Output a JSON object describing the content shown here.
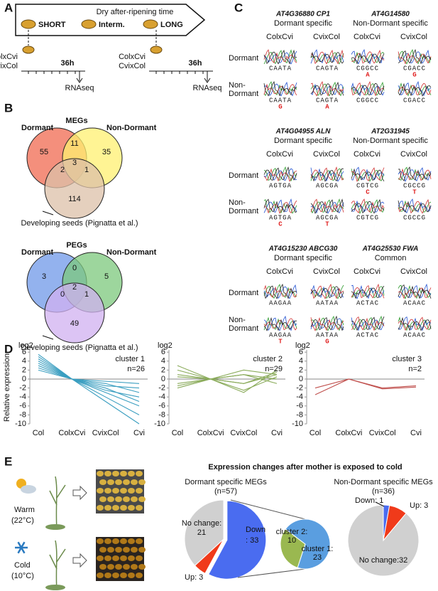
{
  "panel_a": {
    "letter": "A",
    "arrow_label": "Dry after-ripening time",
    "stages": [
      "SHORT",
      "Interm.",
      "LONG"
    ],
    "crosses": [
      "ColxCvi",
      "CvixCol"
    ],
    "time": "36h",
    "assay": "RNAseq"
  },
  "panel_b": {
    "letter": "B",
    "row_left": "Dormant",
    "row_right": "Non-Dormant",
    "third": "Developing seeds (Pignatta et al.)",
    "megs": {
      "title": "MEGs",
      "dormant_only": 55,
      "dormant_nondormant": 11,
      "nondormant_only": 35,
      "dormant_seeds": 2,
      "all_three": 3,
      "nondormant_seeds": 1,
      "seeds_only": 114
    },
    "pegs": {
      "title": "PEGs",
      "dormant_only": 3,
      "dormant_nondormant": 0,
      "nondormant_only": 5,
      "dormant_seeds": 0,
      "all_three": 2,
      "nondormant_seeds": 1,
      "seeds_only": 49
    }
  },
  "panel_c": {
    "letter": "C",
    "columns": [
      "ColxCvi",
      "CvixCol"
    ],
    "row_labels": {
      "dormant": "Dormant",
      "non_dormant": [
        "Non-",
        "Dormant"
      ]
    },
    "genes": [
      {
        "name": "AT4G36880 CP1",
        "spec": "Dormant specific",
        "dormant": [
          {
            "seq": "CAATA"
          },
          {
            "seq": "CAGTA"
          }
        ],
        "non_dormant": [
          {
            "seq": "CAATA",
            "alt": "G"
          },
          {
            "seq": "CAGTA",
            "alt": "A"
          }
        ]
      },
      {
        "name": "AT4G14580",
        "spec": "Non-Dormant specific",
        "dormant": [
          {
            "seq": "CGGCC",
            "alt": "A"
          },
          {
            "seq": "CGACC",
            "alt": "G"
          }
        ],
        "non_dormant": [
          {
            "seq": "CGGCC"
          },
          {
            "seq": "CGACC"
          }
        ]
      },
      {
        "name": "AT4G04955 ALN",
        "spec": "Dormant specific",
        "dormant": [
          {
            "seq": "AGTGA"
          },
          {
            "seq": "AGCGA"
          }
        ],
        "non_dormant": [
          {
            "seq": "AGTGA",
            "alt": "C"
          },
          {
            "seq": "AGCGA",
            "alt": "T"
          }
        ]
      },
      {
        "name": "AT2G31945",
        "spec": "Non-Dormant specific",
        "dormant": [
          {
            "seq": "CGTCG",
            "alt": "C"
          },
          {
            "seq": "CGCCG",
            "alt": "T"
          }
        ],
        "non_dormant": [
          {
            "seq": "CGTCG"
          },
          {
            "seq": "CGCCG"
          }
        ]
      },
      {
        "name": "AT4G15230 ABCG30",
        "spec": "Dormant specific",
        "dormant": [
          {
            "seq": "AAGAA"
          },
          {
            "seq": "AATAA"
          }
        ],
        "non_dormant": [
          {
            "seq": "AAGAA",
            "alt": "T"
          },
          {
            "seq": "AATAA",
            "alt": "G"
          }
        ]
      },
      {
        "name": "AT4G25530 FWA",
        "spec": "Common",
        "dormant": [
          {
            "seq": "ACTAC"
          },
          {
            "seq": "ACAAC"
          }
        ],
        "non_dormant": [
          {
            "seq": "ACTAC"
          },
          {
            "seq": "ACAAC"
          }
        ]
      }
    ]
  },
  "panel_d": {
    "letter": "D",
    "unit": "log2",
    "ylabel": "Relative expression",
    "categories": [
      "Col",
      "ColxCvi",
      "CvixCol",
      "Cvi"
    ],
    "ylim": [
      -10,
      6.5
    ],
    "yticks": [
      6,
      4,
      2,
      0,
      -2,
      -4,
      -6,
      -8,
      -10
    ],
    "clusters": [
      {
        "name": "cluster 1",
        "n": "n=26",
        "color": "#3a9ec0",
        "lines": [
          [
            4.5,
            0,
            -2,
            -5
          ],
          [
            3,
            0,
            -1,
            -3
          ],
          [
            5,
            0,
            -3,
            -6
          ],
          [
            2,
            0,
            -0.5,
            -1
          ],
          [
            4,
            0,
            -4,
            -8
          ],
          [
            3.5,
            0,
            -2.5,
            -4
          ],
          [
            2.5,
            0,
            -1.5,
            -2
          ],
          [
            5.5,
            0,
            -5,
            -10
          ]
        ]
      },
      {
        "name": "cluster 2",
        "n": "n=29",
        "color": "#8aab5a",
        "lines": [
          [
            1,
            0,
            -1,
            1
          ],
          [
            -2,
            0,
            2,
            1
          ],
          [
            3,
            0,
            -3,
            2
          ],
          [
            0.5,
            0,
            1,
            0
          ],
          [
            -1,
            0,
            -1,
            1.5
          ],
          [
            2,
            0,
            1,
            -1
          ],
          [
            -1.5,
            0,
            -2.5,
            0.5
          ]
        ]
      },
      {
        "name": "cluster 3",
        "n": "n=2",
        "color": "#c0504d",
        "lines": [
          [
            -3.5,
            0,
            -2,
            -1.5
          ],
          [
            -2,
            0,
            -2.2,
            -1.8
          ]
        ]
      }
    ]
  },
  "panel_e": {
    "letter": "E",
    "warm": [
      "Warm",
      "(22°C)"
    ],
    "cold": [
      "Cold",
      "(10°C)"
    ],
    "title": "Expression changes after mother is exposed to cold",
    "dormant_pie": {
      "title": "Dormant specific MEGs",
      "n": "(n=57)",
      "slices": [
        {
          "label": "Down",
          "value": 33,
          "value_label": ": 33",
          "color": "#4a6cf0"
        },
        {
          "label": "Up",
          "value": 3,
          "value_label": ": 3",
          "color": "#f03a1a"
        },
        {
          "label": "No change:",
          "value": 21,
          "color": "#d0d0d0"
        }
      ],
      "sub_slices": [
        {
          "label": "cluster 2:",
          "value": 10,
          "color": "#9ab850"
        },
        {
          "label": "cluster 1:",
          "value": 23,
          "color": "#5a9ee0"
        }
      ]
    },
    "nondormant_pie": {
      "title": "Non-Dormant specific MEGs",
      "n": "(n=36)",
      "slices": [
        {
          "label": "Down",
          "value": 1,
          "value_label": ": 1",
          "color": "#4a6cf0"
        },
        {
          "label": "Up",
          "value": 3,
          "value_label": ": 3",
          "color": "#f03a1a"
        },
        {
          "label": "No change:",
          "value": 32,
          "color": "#d0d0d0"
        }
      ]
    }
  }
}
